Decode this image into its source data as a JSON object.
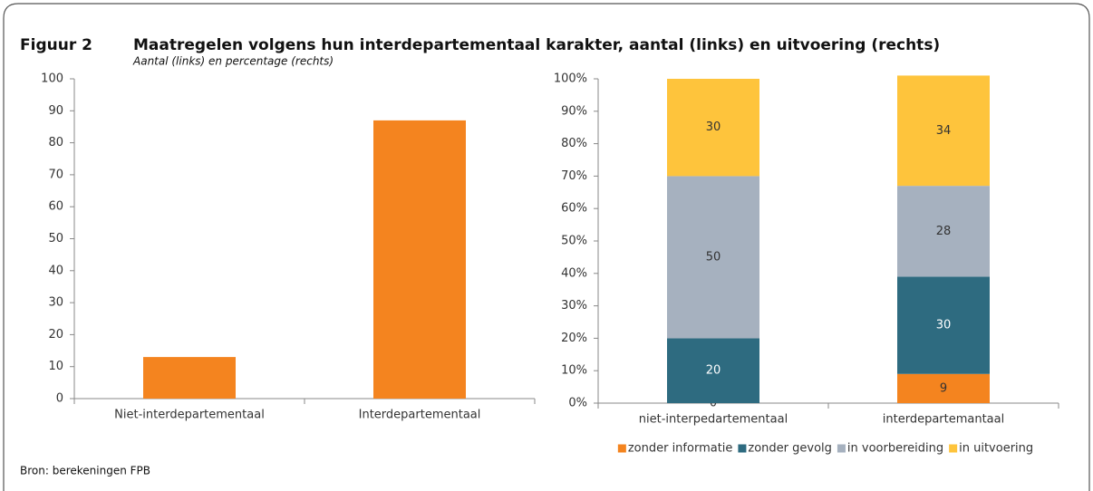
{
  "header": {
    "label": "Figuur 2",
    "title": "Maatregelen volgens hun interdepartementaal karakter, aantal (links) en uitvoering (rechts)",
    "subtitle": "Aantal (links) en percentage (rechts)"
  },
  "source": "Bron: berekeningen FPB",
  "chart_data": [
    {
      "type": "bar",
      "categories": [
        "Niet-interdepartementaal",
        "Interdepartementaal"
      ],
      "values": [
        13,
        87
      ],
      "color": "#f4841f",
      "ylim": [
        0,
        100
      ],
      "yticks": [
        0,
        10,
        20,
        30,
        40,
        50,
        60,
        70,
        80,
        90,
        100
      ]
    },
    {
      "type": "stacked_bar",
      "categories": [
        "niet-interpedartementaal",
        "interdepartemantaal"
      ],
      "series": [
        {
          "name": "zonder informatie",
          "color": "#f4841f",
          "values": [
            0,
            9
          ]
        },
        {
          "name": "zonder gevolg",
          "color": "#2e6b80",
          "values": [
            20,
            30
          ]
        },
        {
          "name": "in voorbereiding",
          "color": "#a6b1bf",
          "values": [
            50,
            28
          ]
        },
        {
          "name": "in uitvoering",
          "color": "#fec43c",
          "values": [
            30,
            34
          ]
        }
      ],
      "ylim": [
        0,
        100
      ],
      "yticks": [
        {
          "value": 0,
          "label": "0%"
        },
        {
          "value": 10,
          "label": "10%"
        },
        {
          "value": 20,
          "label": "20%"
        },
        {
          "value": 30,
          "label": "30%"
        },
        {
          "value": 40,
          "label": "40%"
        },
        {
          "value": 50,
          "label": "50%"
        },
        {
          "value": 60,
          "label": "60%"
        },
        {
          "value": 70,
          "label": "70%"
        },
        {
          "value": 80,
          "label": "80%"
        },
        {
          "value": 90,
          "label": "90%"
        },
        {
          "value": 100,
          "label": "100%"
        }
      ],
      "legend": "bottom"
    }
  ]
}
